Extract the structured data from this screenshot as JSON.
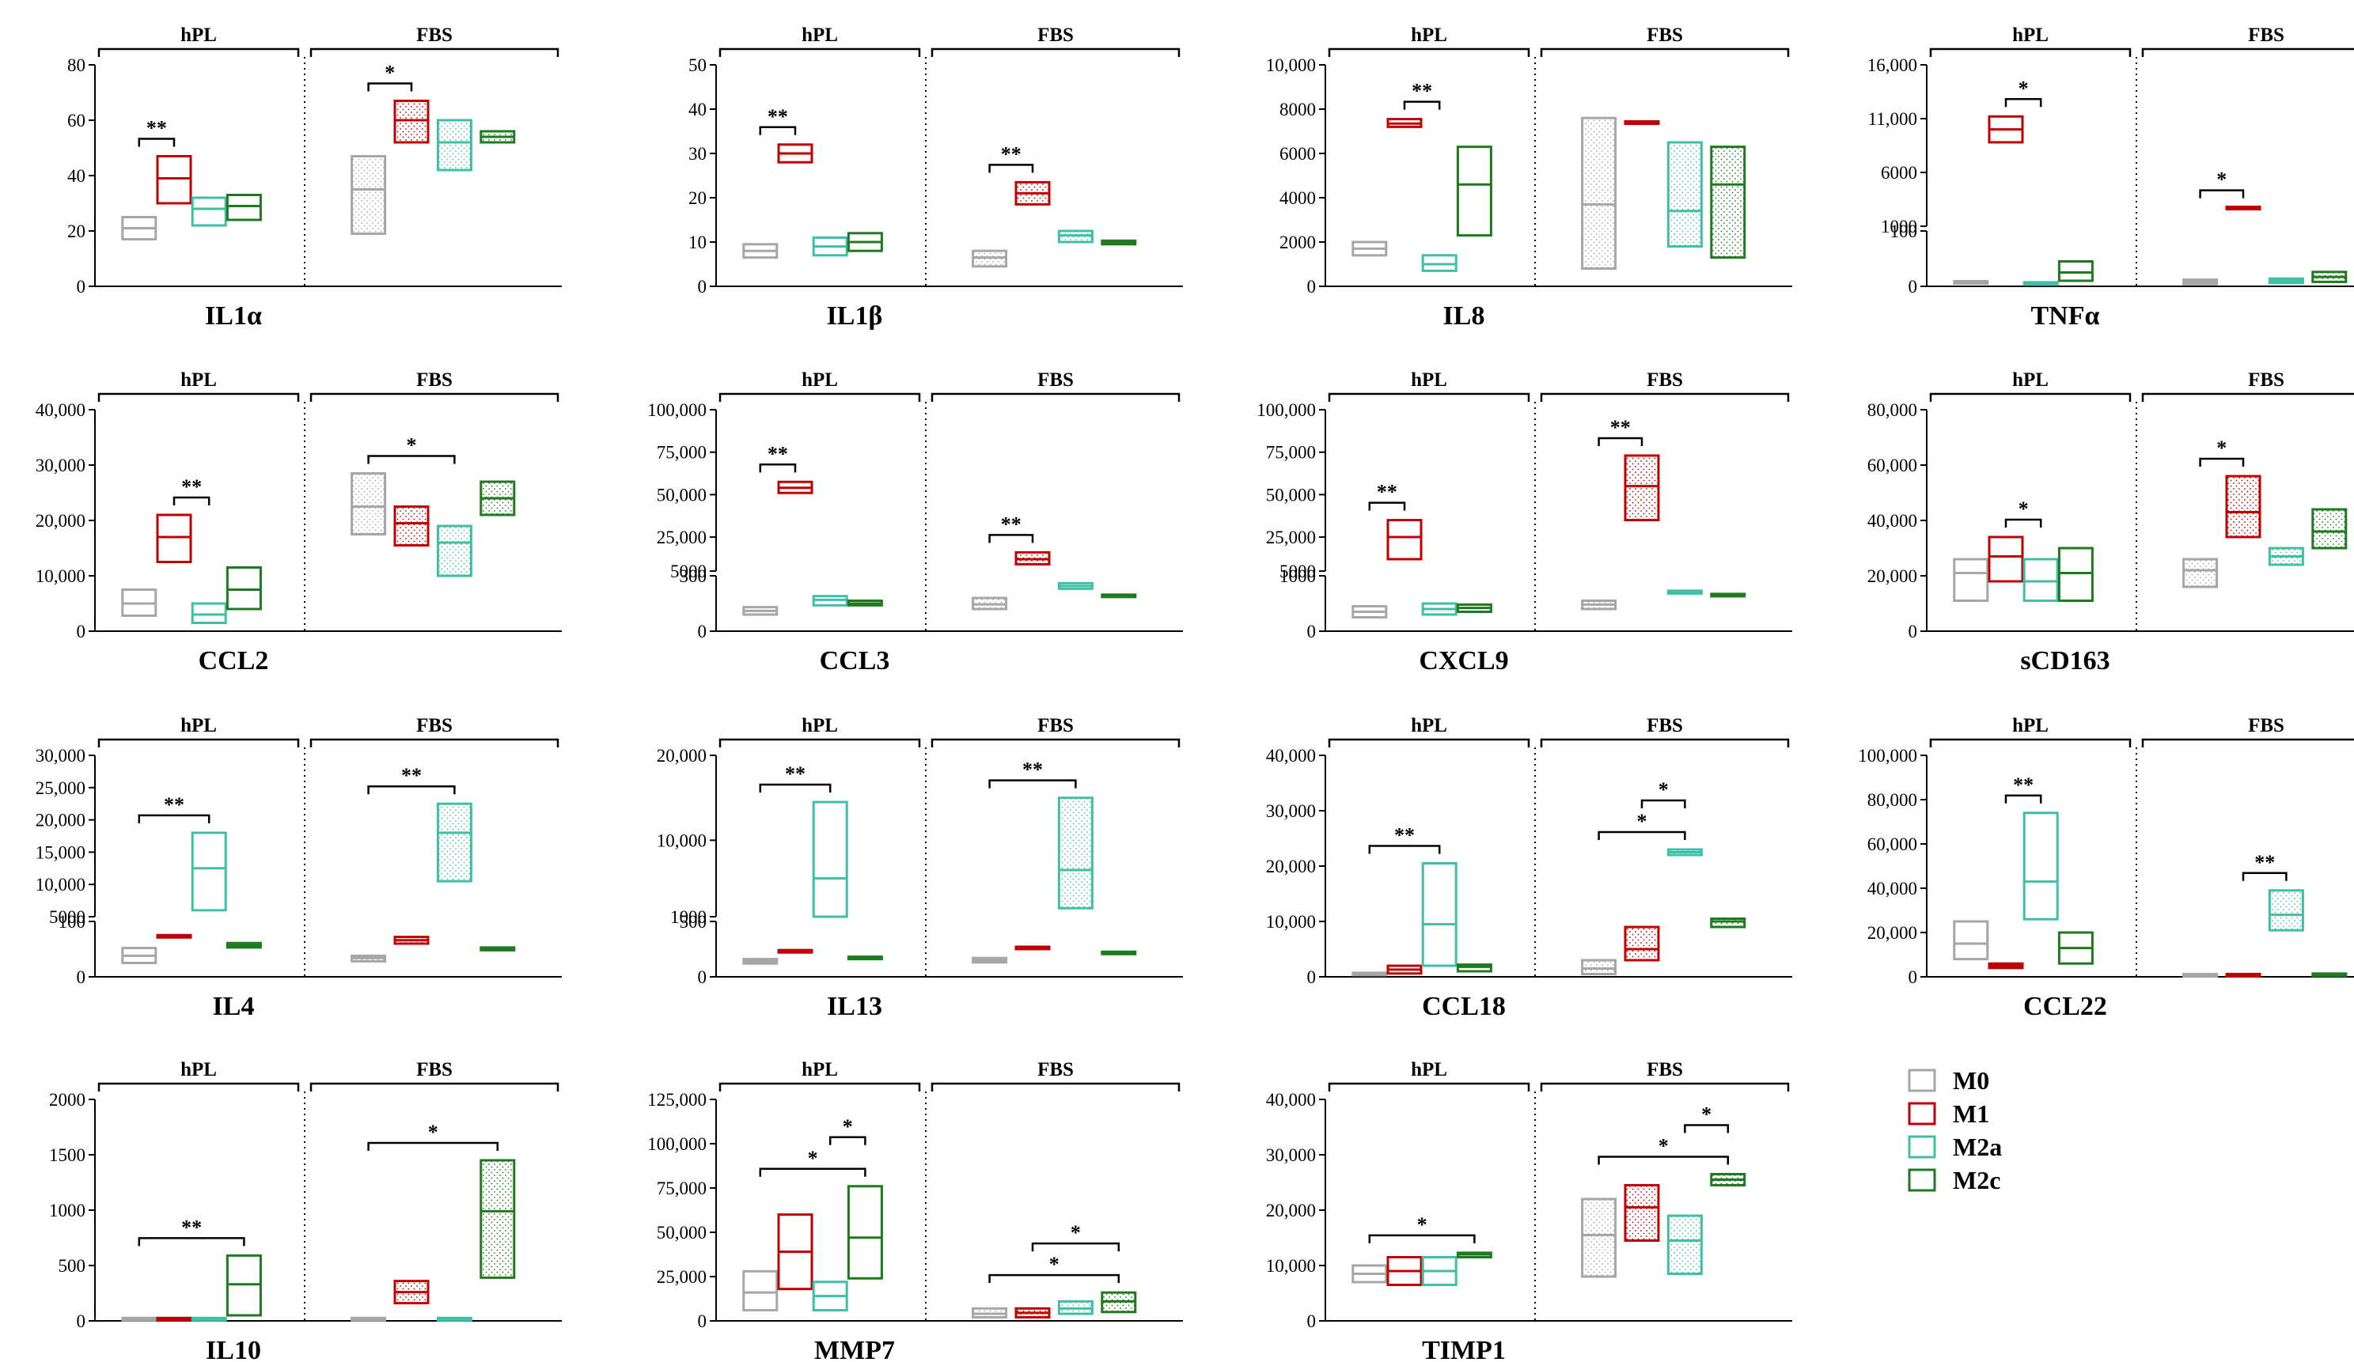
{
  "colors": {
    "M0": "#a6a6a6",
    "M1": "#c00000",
    "M2a": "#3fbfa5",
    "M2c": "#1e7a1e"
  },
  "legend": [
    "M0",
    "M1",
    "M2a",
    "M2c"
  ],
  "groups": [
    "hPL",
    "FBS"
  ],
  "chart_data": [
    {
      "type": "box",
      "title": "IL1α",
      "scale": "linear",
      "ylim": [
        0,
        80
      ],
      "yticks": [
        "0",
        "20",
        "40",
        "60",
        "80"
      ],
      "boxes": {
        "hPL": [
          [
            17,
            21,
            25
          ],
          [
            30,
            39,
            47
          ],
          [
            22,
            28,
            32
          ],
          [
            24,
            29,
            33
          ]
        ],
        "FBS": [
          [
            19,
            35,
            47
          ],
          [
            52,
            60,
            67
          ],
          [
            42,
            52,
            60
          ],
          [
            52,
            54,
            56
          ]
        ]
      },
      "sig": [
        {
          "g": "hPL",
          "a": 0,
          "b": 1,
          "t": "**"
        },
        {
          "g": "FBS",
          "a": 0,
          "b": 1,
          "t": "*"
        }
      ]
    },
    {
      "type": "box",
      "title": "IL1β",
      "scale": "linear",
      "ylim": [
        0,
        50
      ],
      "yticks": [
        "0",
        "10",
        "20",
        "30",
        "40",
        "50"
      ],
      "boxes": {
        "hPL": [
          [
            6.5,
            8,
            9.5
          ],
          [
            28,
            30,
            32
          ],
          [
            7,
            9,
            11
          ],
          [
            8,
            10,
            12
          ]
        ],
        "FBS": [
          [
            4.5,
            6.5,
            8
          ],
          [
            18.5,
            21,
            23.5
          ],
          [
            10,
            11.5,
            12.5
          ],
          [
            9.5,
            10,
            10.3
          ]
        ]
      },
      "sig": [
        {
          "g": "hPL",
          "a": 0,
          "b": 1,
          "t": "**"
        },
        {
          "g": "FBS",
          "a": 0,
          "b": 1,
          "t": "**"
        }
      ]
    },
    {
      "type": "box",
      "title": "IL8",
      "scale": "linear",
      "ylim": [
        0,
        10000
      ],
      "yticks": [
        "0",
        "2000",
        "4000",
        "6000",
        "8000",
        "10,000"
      ],
      "boxes": {
        "hPL": [
          [
            1400,
            1700,
            2000
          ],
          [
            7200,
            7350,
            7550
          ],
          [
            700,
            1000,
            1400
          ],
          [
            2300,
            4600,
            6300
          ]
        ],
        "FBS": [
          [
            800,
            3700,
            7600
          ],
          [
            7340,
            7350,
            7360
          ],
          [
            1800,
            3400,
            6500
          ],
          [
            1300,
            4600,
            6300
          ]
        ]
      },
      "sig": [
        {
          "g": "hPL",
          "a": 1,
          "b": 2,
          "t": "**"
        }
      ]
    },
    {
      "type": "box",
      "title": "TNFα",
      "scale": "broken",
      "ylim": [
        0,
        16000
      ],
      "low": [
        0,
        100
      ],
      "high": [
        1000,
        16000
      ],
      "yticks_low": [
        "0",
        "100"
      ],
      "yticks_high": [
        "1000",
        "6000",
        "11,000",
        "16,000"
      ],
      "boxes": {
        "hPL": [
          [
            5,
            7,
            9
          ],
          [
            8800,
            10000,
            11200
          ],
          [
            3,
            5,
            7
          ],
          [
            10,
            25,
            45
          ]
        ],
        "FBS": [
          [
            4,
            8,
            12
          ],
          [
            2580,
            2650,
            2720
          ],
          [
            6,
            10,
            14
          ],
          [
            8,
            17,
            26
          ]
        ]
      },
      "sig": [
        {
          "g": "hPL",
          "a": 1,
          "b": 2,
          "t": "*"
        },
        {
          "g": "FBS",
          "a": 0,
          "b": 1,
          "t": "*"
        }
      ]
    },
    {
      "type": "box",
      "title": "CCL2",
      "scale": "linear",
      "ylim": [
        0,
        40000
      ],
      "yticks": [
        "0",
        "10,000",
        "20,000",
        "30,000",
        "40,000"
      ],
      "boxes": {
        "hPL": [
          [
            2800,
            5000,
            7500
          ],
          [
            12500,
            17000,
            21000
          ],
          [
            1500,
            3000,
            5000
          ],
          [
            4000,
            7500,
            11500
          ]
        ],
        "FBS": [
          [
            17500,
            22500,
            28500
          ],
          [
            15500,
            19500,
            22500
          ],
          [
            10000,
            16000,
            19000
          ],
          [
            21000,
            24000,
            27000
          ]
        ]
      },
      "sig": [
        {
          "g": "hPL",
          "a": 1,
          "b": 2,
          "t": "**"
        },
        {
          "g": "FBS",
          "a": 0,
          "b": 2,
          "t": "*"
        }
      ]
    },
    {
      "type": "box",
      "title": "CCL3",
      "scale": "broken",
      "ylim": [
        0,
        100000
      ],
      "low": [
        0,
        300
      ],
      "high": [
        5000,
        100000
      ],
      "yticks_low": [
        "0",
        "300"
      ],
      "yticks_high": [
        "5000",
        "25,000",
        "50,000",
        "75,000",
        "100,000"
      ],
      "boxes": {
        "hPL": [
          [
            90,
            110,
            130
          ],
          [
            51000,
            54000,
            57500
          ],
          [
            140,
            170,
            190
          ],
          [
            140,
            150,
            165
          ]
        ],
        "FBS": [
          [
            120,
            145,
            180
          ],
          [
            9000,
            12000,
            16000
          ],
          [
            230,
            245,
            260
          ],
          [
            185,
            190,
            195
          ]
        ]
      },
      "sig": [
        {
          "g": "hPL",
          "a": 0,
          "b": 1,
          "t": "**"
        },
        {
          "g": "FBS",
          "a": 0,
          "b": 1,
          "t": "**"
        }
      ]
    },
    {
      "type": "box",
      "title": "CXCL9",
      "scale": "broken",
      "ylim": [
        0,
        100000
      ],
      "low": [
        0,
        1000
      ],
      "high": [
        5000,
        100000
      ],
      "yticks_low": [
        "0",
        "1000"
      ],
      "yticks_high": [
        "5000",
        "25,000",
        "50,000",
        "75,000",
        "100,000"
      ],
      "boxes": {
        "hPL": [
          [
            250,
            350,
            450
          ],
          [
            12000,
            25000,
            35000
          ],
          [
            300,
            400,
            500
          ],
          [
            350,
            420,
            480
          ]
        ],
        "FBS": [
          [
            400,
            480,
            550
          ],
          [
            35000,
            55000,
            73000
          ],
          [
            680,
            700,
            730
          ],
          [
            630,
            650,
            670
          ]
        ]
      },
      "sig": [
        {
          "g": "hPL",
          "a": 0,
          "b": 1,
          "t": "**"
        },
        {
          "g": "FBS",
          "a": 0,
          "b": 1,
          "t": "**"
        }
      ]
    },
    {
      "type": "box",
      "title": "sCD163",
      "scale": "linear",
      "ylim": [
        0,
        80000
      ],
      "yticks": [
        "0",
        "20,000",
        "40,000",
        "60,000",
        "80,000"
      ],
      "boxes": {
        "hPL": [
          [
            11000,
            21000,
            26000
          ],
          [
            18000,
            27000,
            34000
          ],
          [
            11000,
            18000,
            26000
          ],
          [
            11000,
            21000,
            30000
          ]
        ],
        "FBS": [
          [
            16000,
            22000,
            26000
          ],
          [
            34000,
            43000,
            56000
          ],
          [
            24000,
            27000,
            30000
          ],
          [
            30000,
            36000,
            44000
          ]
        ]
      },
      "sig": [
        {
          "g": "hPL",
          "a": 1,
          "b": 2,
          "t": "*"
        },
        {
          "g": "FBS",
          "a": 0,
          "b": 1,
          "t": "*"
        }
      ]
    },
    {
      "type": "box",
      "title": "IL4",
      "scale": "broken",
      "ylim": [
        0,
        30000
      ],
      "low": [
        0,
        100
      ],
      "high": [
        5000,
        30000
      ],
      "yticks_low": [
        "0",
        "100"
      ],
      "yticks_high": [
        "5000",
        "10,000",
        "15,000",
        "20,000",
        "25,000",
        "30,000"
      ],
      "boxes": {
        "hPL": [
          [
            25,
            38,
            52
          ],
          [
            71,
            72,
            73
          ],
          [
            6000,
            12500,
            18000
          ],
          [
            53,
            57,
            61
          ]
        ],
        "FBS": [
          [
            28,
            34,
            38
          ],
          [
            60,
            66,
            72
          ],
          [
            10500,
            18000,
            22500
          ],
          [
            48,
            50,
            53
          ]
        ]
      },
      "sig": [
        {
          "g": "hPL",
          "a": 0,
          "b": 2,
          "t": "**"
        },
        {
          "g": "FBS",
          "a": 0,
          "b": 2,
          "t": "**"
        }
      ]
    },
    {
      "type": "box",
      "title": "IL13",
      "scale": "broken",
      "ylim": [
        0,
        20000
      ],
      "low": [
        0,
        500
      ],
      "high": [
        1000,
        20000
      ],
      "yticks_low": [
        "0",
        "500"
      ],
      "yticks_high": [
        "1000",
        "10,000",
        "20,000"
      ],
      "boxes": {
        "hPL": [
          [
            120,
            140,
            160
          ],
          [
            220,
            225,
            230
          ],
          [
            1000,
            5500,
            14500
          ],
          [
            160,
            170,
            180
          ]
        ],
        "FBS": [
          [
            130,
            150,
            170
          ],
          [
            250,
            255,
            265
          ],
          [
            2000,
            6500,
            15000
          ],
          [
            205,
            210,
            215
          ]
        ]
      },
      "sig": [
        {
          "g": "hPL",
          "a": 0,
          "b": 2,
          "t": "**"
        },
        {
          "g": "FBS",
          "a": 0,
          "b": 2,
          "t": "**"
        }
      ]
    },
    {
      "type": "box",
      "title": "CCL18",
      "scale": "linear",
      "ylim": [
        0,
        40000
      ],
      "yticks": [
        "0",
        "10,000",
        "20,000",
        "30,000",
        "40,000"
      ],
      "boxes": {
        "hPL": [
          [
            300,
            400,
            500
          ],
          [
            600,
            1300,
            2000
          ],
          [
            2000,
            9500,
            20500
          ],
          [
            1000,
            1800,
            2200
          ]
        ],
        "FBS": [
          [
            500,
            1500,
            3000
          ],
          [
            3000,
            5000,
            9000
          ],
          [
            22000,
            22500,
            23000
          ],
          [
            9000,
            10000,
            10500
          ]
        ]
      },
      "sig": [
        {
          "g": "hPL",
          "a": 0,
          "b": 2,
          "t": "**"
        },
        {
          "g": "FBS",
          "a": 0,
          "b": 2,
          "t": "*"
        },
        {
          "g": "FBS",
          "a": 1,
          "b": 2,
          "t": "*"
        }
      ]
    },
    {
      "type": "box",
      "title": "CCL22",
      "scale": "linear",
      "ylim": [
        0,
        100000
      ],
      "yticks": [
        "0",
        "20,000",
        "40,000",
        "60,000",
        "80,000",
        "100,000"
      ],
      "boxes": {
        "hPL": [
          [
            8000,
            15000,
            25000
          ],
          [
            4000,
            5000,
            6000
          ],
          [
            26000,
            43000,
            74000
          ],
          [
            6000,
            13000,
            20000
          ]
        ],
        "FBS": [
          [
            200,
            300,
            400
          ],
          [
            200,
            300,
            400
          ],
          [
            21000,
            28000,
            39000
          ],
          [
            400,
            600,
            800
          ]
        ]
      },
      "sig": [
        {
          "g": "hPL",
          "a": 1,
          "b": 2,
          "t": "**"
        },
        {
          "g": "FBS",
          "a": 1,
          "b": 2,
          "t": "**"
        }
      ]
    },
    {
      "type": "box",
      "title": "IL10",
      "scale": "linear",
      "ylim": [
        0,
        2000
      ],
      "yticks": [
        "0",
        "500",
        "1000",
        "1500",
        "2000"
      ],
      "boxes": {
        "hPL": [
          [
            5,
            8,
            10
          ],
          [
            5,
            8,
            10
          ],
          [
            5,
            8,
            10
          ],
          [
            50,
            330,
            590
          ]
        ],
        "FBS": [
          [
            5,
            8,
            10
          ],
          [
            160,
            260,
            360
          ],
          [
            5,
            8,
            10
          ],
          [
            390,
            990,
            1450
          ]
        ]
      },
      "sig": [
        {
          "g": "hPL",
          "a": 0,
          "b": 3,
          "t": "**"
        },
        {
          "g": "FBS",
          "a": 0,
          "b": 3,
          "t": "*"
        }
      ]
    },
    {
      "type": "box",
      "title": "MMP7",
      "scale": "linear",
      "ylim": [
        0,
        125000
      ],
      "yticks": [
        "0",
        "25,000",
        "50,000",
        "75,000",
        "100,000",
        "125,000"
      ],
      "boxes": {
        "hPL": [
          [
            6000,
            16000,
            28000
          ],
          [
            18000,
            39000,
            60000
          ],
          [
            6000,
            14000,
            22000
          ],
          [
            24000,
            47000,
            76000
          ]
        ],
        "FBS": [
          [
            2000,
            4000,
            7000
          ],
          [
            2000,
            4500,
            7000
          ],
          [
            4000,
            7000,
            11000
          ],
          [
            5000,
            11000,
            16000
          ]
        ]
      },
      "sig": [
        {
          "g": "hPL",
          "a": 0,
          "b": 3,
          "t": "*"
        },
        {
          "g": "hPL",
          "a": 2,
          "b": 3,
          "t": "*"
        },
        {
          "g": "FBS",
          "a": 0,
          "b": 3,
          "t": "*"
        },
        {
          "g": "FBS",
          "a": 1,
          "b": 3,
          "t": "*"
        }
      ]
    },
    {
      "type": "box",
      "title": "TIMP1",
      "scale": "linear",
      "ylim": [
        0,
        40000
      ],
      "yticks": [
        "0",
        "10,000",
        "20,000",
        "30,000",
        "40,000"
      ],
      "boxes": {
        "hPL": [
          [
            7000,
            8500,
            10000
          ],
          [
            6500,
            9000,
            11500
          ],
          [
            6500,
            9000,
            11500
          ],
          [
            11500,
            12000,
            12300
          ]
        ],
        "FBS": [
          [
            8000,
            15500,
            22000
          ],
          [
            14500,
            20500,
            24500
          ],
          [
            8500,
            14500,
            19000
          ],
          [
            24500,
            25500,
            26500
          ]
        ]
      },
      "sig": [
        {
          "g": "hPL",
          "a": 0,
          "b": 3,
          "t": "*"
        },
        {
          "g": "FBS",
          "a": 0,
          "b": 3,
          "t": "*"
        },
        {
          "g": "FBS",
          "a": 2,
          "b": 3,
          "t": "*"
        }
      ]
    }
  ]
}
